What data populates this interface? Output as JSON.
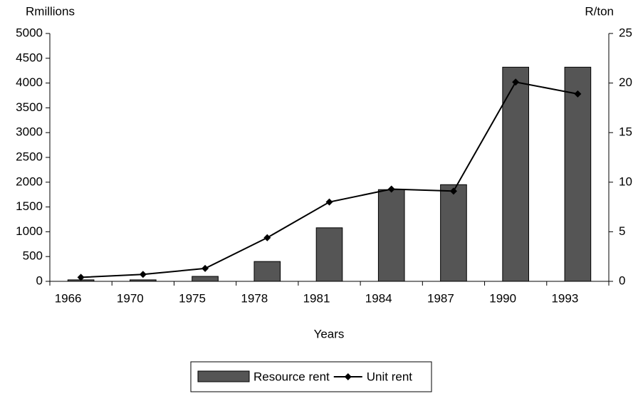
{
  "chart_data": {
    "type": "bar",
    "ylabel": "Rmillions",
    "y2label": "R/ton",
    "xlabel": "Years",
    "categories": [
      "1966",
      "1970",
      "1975",
      "1978",
      "1981",
      "1984",
      "1987",
      "1990",
      "1993"
    ],
    "series": [
      {
        "name": "Resource rent",
        "type": "bar",
        "color": "#555555",
        "values": [
          30,
          30,
          100,
          400,
          1080,
          1850,
          1950,
          4320,
          4320
        ]
      },
      {
        "name": "Unit rent",
        "type": "line",
        "axis": "y2",
        "color": "#000000",
        "values": [
          0.4,
          0.7,
          1.3,
          4.4,
          8.0,
          9.3,
          9.1,
          20.1,
          18.9
        ]
      }
    ],
    "ylim": [
      0,
      5000
    ],
    "yticks": [
      0,
      500,
      1000,
      1500,
      2000,
      2500,
      3000,
      3500,
      4000,
      4500,
      5000
    ],
    "y2lim": [
      0,
      25
    ],
    "y2ticks": [
      0,
      5,
      10,
      15,
      20,
      25
    ],
    "grid": false,
    "legend": "bottom"
  }
}
